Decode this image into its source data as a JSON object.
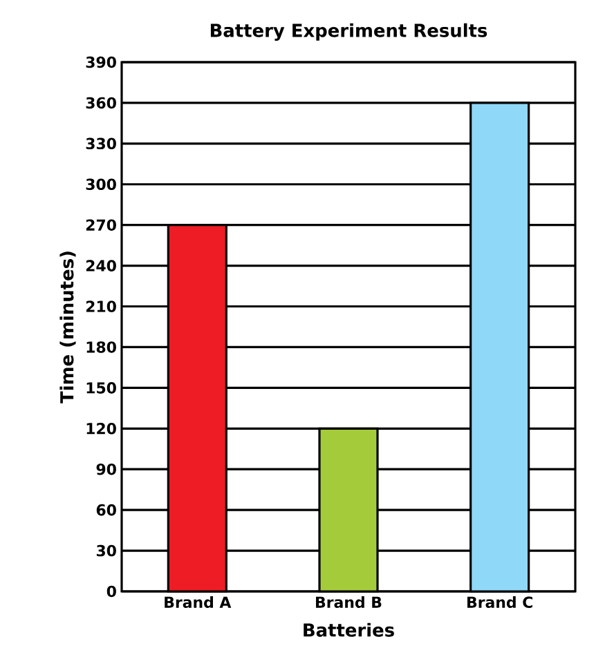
{
  "chart_data": {
    "type": "bar",
    "title": "Battery Experiment Results",
    "xlabel": "Batteries",
    "ylabel": "Time (minutes)",
    "categories": [
      "Brand A",
      "Brand B",
      "Brand C"
    ],
    "values": [
      270,
      120,
      360
    ],
    "colors": [
      "#ee1c25",
      "#a4cc3a",
      "#8fd8f8"
    ],
    "ylim": [
      0,
      390
    ],
    "yticks": [
      0,
      30,
      60,
      90,
      120,
      150,
      180,
      210,
      240,
      270,
      300,
      330,
      360,
      390
    ],
    "grid": "y"
  }
}
